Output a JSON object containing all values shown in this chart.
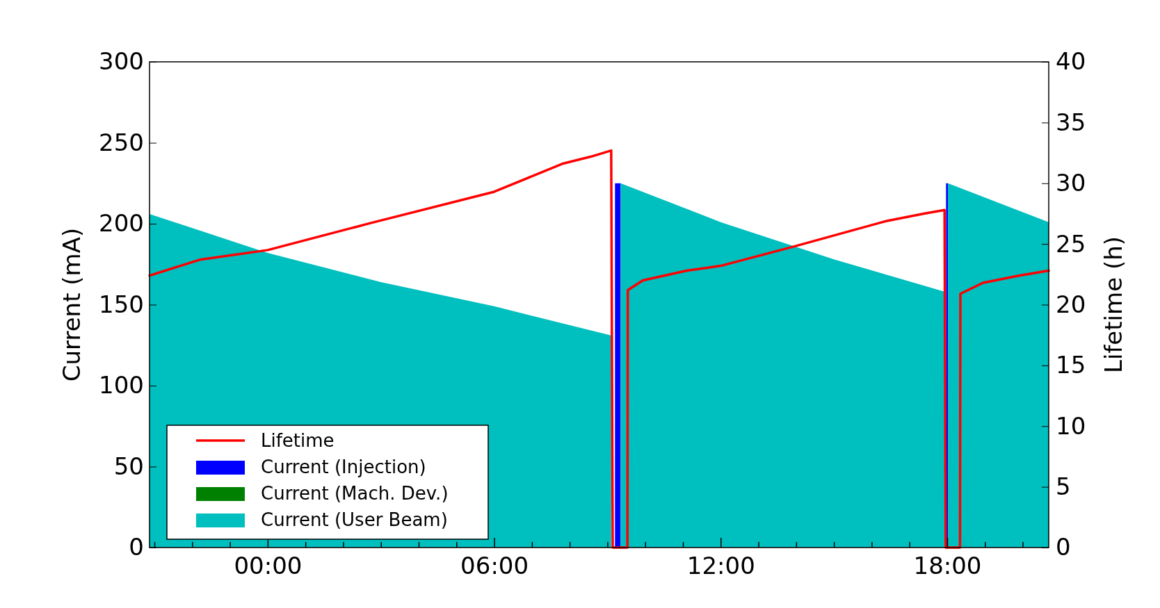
{
  "chart_data": {
    "type": "area",
    "ylabel": "Current (mA)",
    "y2label": "Lifetime (h)",
    "xlim": [
      -3.13,
      20.69
    ],
    "ylim": [
      0,
      300
    ],
    "yticks": [
      0,
      50,
      100,
      150,
      200,
      250,
      300
    ],
    "y2lim": [
      0,
      40
    ],
    "y2ticks": [
      0,
      5,
      10,
      15,
      20,
      25,
      30,
      35,
      40
    ],
    "xticks": [
      {
        "value": -3,
        "label": null
      },
      {
        "value": -2,
        "label": null
      },
      {
        "value": -1,
        "label": null
      },
      {
        "value": 0,
        "label": "00:00"
      },
      {
        "value": 1,
        "label": null
      },
      {
        "value": 2,
        "label": null
      },
      {
        "value": 3,
        "label": null
      },
      {
        "value": 4,
        "label": null
      },
      {
        "value": 5,
        "label": null
      },
      {
        "value": 6,
        "label": "06:00"
      },
      {
        "value": 7,
        "label": null
      },
      {
        "value": 8,
        "label": null
      },
      {
        "value": 9,
        "label": null
      },
      {
        "value": 10,
        "label": null
      },
      {
        "value": 11,
        "label": null
      },
      {
        "value": 12,
        "label": "12:00"
      },
      {
        "value": 13,
        "label": null
      },
      {
        "value": 14,
        "label": null
      },
      {
        "value": 15,
        "label": null
      },
      {
        "value": 16,
        "label": null
      },
      {
        "value": 17,
        "label": null
      },
      {
        "value": 18,
        "label": "18:00"
      },
      {
        "value": 19,
        "label": null
      },
      {
        "value": 20,
        "label": null
      }
    ],
    "grid": false,
    "legend": "bottom left",
    "series": [
      {
        "name": "Lifetime",
        "type": "line",
        "axis": "y2",
        "color": "#ff0000",
        "x": [
          -3.13,
          -1.8,
          0,
          2.7,
          6,
          7.8,
          8.57,
          9.1,
          9.14,
          9.53,
          9.54,
          9.94,
          11.1,
          12,
          13.95,
          16.4,
          17.38,
          17.93,
          17.96,
          18.34,
          18.35,
          18.95,
          19.92,
          20.69
        ],
        "values": [
          22.4,
          23.7,
          24.5,
          26.7,
          29.3,
          31.6,
          32.2,
          32.7,
          0,
          0,
          21.2,
          22,
          22.8,
          23.2,
          24.8,
          26.9,
          27.5,
          27.8,
          0,
          0,
          20.9,
          21.8,
          22.4,
          22.8
        ]
      },
      {
        "name": "Current (Injection)",
        "color": "#0000ff",
        "x": [
          9.2,
          9.35,
          9.36,
          17.97,
          18.02
        ],
        "values": [
          225,
          225,
          null,
          225,
          225
        ]
      },
      {
        "name": "Current (Mach. Dev.)",
        "color": "#008000"
      },
      {
        "name": "Current (User Beam)",
        "color": "#00bfbf",
        "x": [
          -3.13,
          0,
          3,
          6,
          9.1,
          9.11,
          9.35,
          12,
          15,
          17.93,
          17.94,
          18.02,
          20.69
        ],
        "values": [
          206,
          182,
          164,
          149,
          131,
          null,
          225,
          201,
          178,
          158,
          null,
          225,
          201
        ]
      }
    ]
  }
}
